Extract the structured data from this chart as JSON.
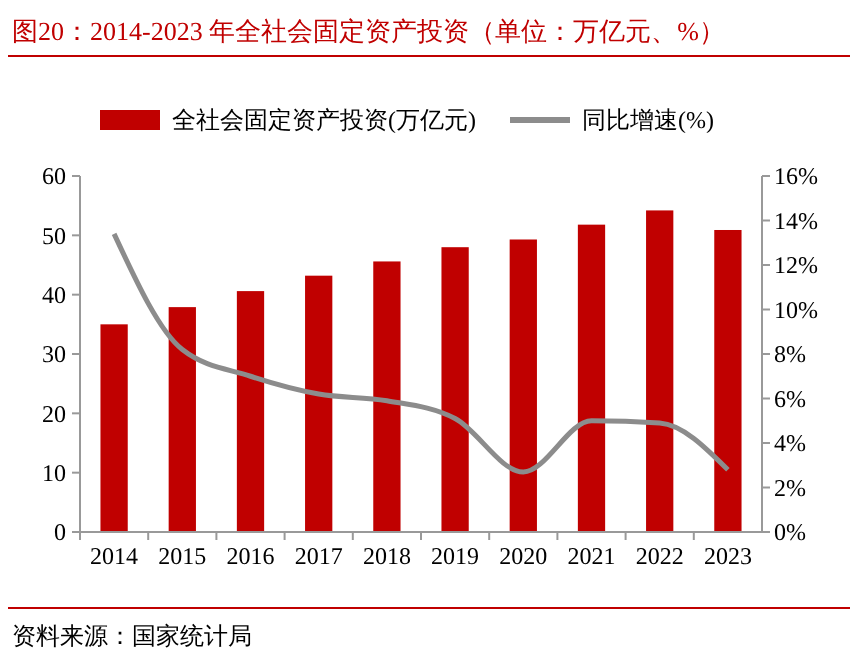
{
  "chart_data": {
    "type": "bar",
    "title": "图20：2014-2023 年全社会固定资产投资（单位：万亿元、%）",
    "categories": [
      "2014",
      "2015",
      "2016",
      "2017",
      "2018",
      "2019",
      "2020",
      "2021",
      "2022",
      "2023"
    ],
    "series": [
      {
        "name": "全社会固定资产投资(万亿元)",
        "color": "#c00000",
        "values": [
          35.0,
          37.9,
          40.6,
          43.2,
          45.6,
          48.0,
          49.3,
          51.8,
          54.2,
          50.9
        ]
      },
      {
        "name": "同比增速(%)",
        "type": "line",
        "axis": "y2",
        "color": "#8c8c8c",
        "values": [
          13.4,
          8.2,
          7.0,
          6.2,
          5.9,
          5.1,
          2.7,
          5.0,
          4.9,
          2.8
        ]
      }
    ],
    "ylim": [
      0,
      60
    ],
    "yticks": [
      0,
      10,
      20,
      30,
      40,
      50,
      60
    ],
    "y2lim": [
      0,
      16
    ],
    "y2ticks": [
      {
        "value": 0,
        "label": "0%"
      },
      {
        "value": 2,
        "label": "2%"
      },
      {
        "value": 4,
        "label": "4%"
      },
      {
        "value": 6,
        "label": "6%"
      },
      {
        "value": 8,
        "label": "8%"
      },
      {
        "value": 10,
        "label": "10%"
      },
      {
        "value": 12,
        "label": "12%"
      },
      {
        "value": 14,
        "label": "14%"
      },
      {
        "value": 16,
        "label": "16%"
      }
    ],
    "legend": "top",
    "grid": false,
    "marker": "none",
    "line_style": "solid",
    "annotations": [
      "资料来源：国家统计局"
    ]
  }
}
